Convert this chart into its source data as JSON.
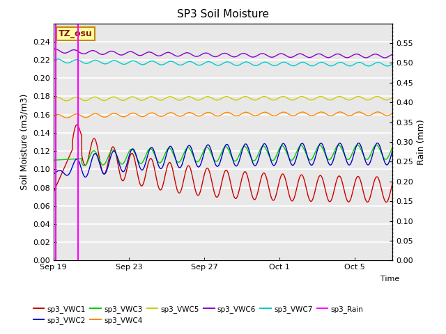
{
  "title": "SP3 Soil Moisture",
  "xlabel": "Time",
  "ylabel_left": "Soil Moisture (m3/m3)",
  "ylabel_right": "Rain (mm)",
  "ylim_left": [
    0.0,
    0.26
  ],
  "ylim_right": [
    0.0,
    0.6
  ],
  "yticks_left": [
    0.0,
    0.02,
    0.04,
    0.06,
    0.08,
    0.1,
    0.12,
    0.14,
    0.16,
    0.18,
    0.2,
    0.22,
    0.24
  ],
  "yticks_right": [
    0.0,
    0.05,
    0.1,
    0.15,
    0.2,
    0.25,
    0.3,
    0.35,
    0.4,
    0.45,
    0.5,
    0.55
  ],
  "tz_label": "TZ_osu",
  "background_color": "#e8e8e8",
  "grid_color": "#ffffff",
  "total_days": 18.0,
  "tick_positions": [
    0,
    4,
    8,
    12,
    16
  ],
  "tick_labels": [
    "Sep 19",
    "Sep 23",
    "Sep 27",
    "Oct 1",
    "Oct 5"
  ],
  "series": {
    "sp3_VWC1": {
      "color": "#cc0000",
      "lw": 1.0
    },
    "sp3_VWC2": {
      "color": "#0000cc",
      "lw": 1.0
    },
    "sp3_VWC3": {
      "color": "#00cc00",
      "lw": 1.0
    },
    "sp3_VWC4": {
      "color": "#ff8800",
      "lw": 1.0
    },
    "sp3_VWC5": {
      "color": "#cccc00",
      "lw": 1.0
    },
    "sp3_VWC6": {
      "color": "#8800cc",
      "lw": 1.0
    },
    "sp3_VWC7": {
      "color": "#00cccc",
      "lw": 1.0
    },
    "sp3_Rain": {
      "color": "#ff00ff",
      "lw": 1.5
    }
  },
  "legend_labels": [
    "sp3_VWC1",
    "sp3_VWC2",
    "sp3_VWC3",
    "sp3_VWC4",
    "sp3_VWC5",
    "sp3_VWC6",
    "sp3_VWC7",
    "sp3_Rain"
  ],
  "legend_colors": [
    "#cc0000",
    "#0000cc",
    "#00cc00",
    "#ff8800",
    "#cccc00",
    "#8800cc",
    "#00cccc",
    "#ff00ff"
  ]
}
